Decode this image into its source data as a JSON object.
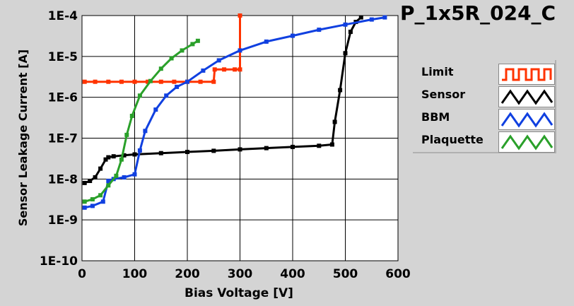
{
  "title": "P_1x5R_024_C",
  "chart_data": {
    "type": "line",
    "xlabel": "Bias Voltage [V]",
    "ylabel": "Sensor Leakage Current [A]",
    "xlim": [
      0,
      600
    ],
    "ylim": [
      1e-10,
      0.0001
    ],
    "y_scale": "log",
    "x_ticks": [
      "0",
      "100",
      "200",
      "300",
      "400",
      "500",
      "600"
    ],
    "y_ticks": [
      "1E-10",
      "1E-9",
      "1E-8",
      "1E-7",
      "1E-6",
      "1E-5",
      "1E-4"
    ],
    "grid": true,
    "legend_position": "right",
    "series": [
      {
        "name": "Limit",
        "color": "#ff3300",
        "points": [
          [
            5,
            2.4e-06
          ],
          [
            25,
            2.4e-06
          ],
          [
            50,
            2.4e-06
          ],
          [
            75,
            2.4e-06
          ],
          [
            100,
            2.4e-06
          ],
          [
            125,
            2.4e-06
          ],
          [
            150,
            2.4e-06
          ],
          [
            175,
            2.4e-06
          ],
          [
            200,
            2.4e-06
          ],
          [
            225,
            2.4e-06
          ],
          [
            250,
            2.4e-06
          ],
          [
            252,
            4.8e-06
          ],
          [
            270,
            4.8e-06
          ],
          [
            290,
            4.8e-06
          ],
          [
            300,
            4.8e-06
          ],
          [
            300,
            0.0001
          ]
        ]
      },
      {
        "name": "Sensor",
        "color": "#000000",
        "points": [
          [
            5,
            8e-09
          ],
          [
            15,
            9e-09
          ],
          [
            25,
            1.1e-08
          ],
          [
            35,
            1.8e-08
          ],
          [
            45,
            3e-08
          ],
          [
            50,
            3.4e-08
          ],
          [
            60,
            3.6e-08
          ],
          [
            80,
            3.8e-08
          ],
          [
            100,
            4e-08
          ],
          [
            150,
            4.3e-08
          ],
          [
            200,
            4.6e-08
          ],
          [
            250,
            4.9e-08
          ],
          [
            300,
            5.3e-08
          ],
          [
            350,
            5.7e-08
          ],
          [
            400,
            6.1e-08
          ],
          [
            450,
            6.5e-08
          ],
          [
            475,
            7e-08
          ],
          [
            480,
            2.5e-07
          ],
          [
            490,
            1.5e-06
          ],
          [
            500,
            1.2e-05
          ],
          [
            510,
            4e-05
          ],
          [
            520,
            7e-05
          ],
          [
            530,
            9e-05
          ]
        ]
      },
      {
        "name": "BBM",
        "color": "#1040e0",
        "points": [
          [
            5,
            2e-09
          ],
          [
            20,
            2.2e-09
          ],
          [
            40,
            2.8e-09
          ],
          [
            50,
            9e-09
          ],
          [
            60,
            1e-08
          ],
          [
            80,
            1.1e-08
          ],
          [
            100,
            1.3e-08
          ],
          [
            110,
            5e-08
          ],
          [
            120,
            1.5e-07
          ],
          [
            140,
            5e-07
          ],
          [
            160,
            1.1e-06
          ],
          [
            180,
            1.8e-06
          ],
          [
            200,
            2.4e-06
          ],
          [
            230,
            4.5e-06
          ],
          [
            260,
            8e-06
          ],
          [
            300,
            1.4e-05
          ],
          [
            350,
            2.3e-05
          ],
          [
            400,
            3.2e-05
          ],
          [
            450,
            4.5e-05
          ],
          [
            500,
            6e-05
          ],
          [
            550,
            8e-05
          ],
          [
            575,
            9e-05
          ]
        ]
      },
      {
        "name": "Plaquette",
        "color": "#2aa02a",
        "points": [
          [
            5,
            2.8e-09
          ],
          [
            20,
            3.2e-09
          ],
          [
            35,
            4e-09
          ],
          [
            50,
            7e-09
          ],
          [
            65,
            1.2e-08
          ],
          [
            75,
            3e-08
          ],
          [
            85,
            1.2e-07
          ],
          [
            95,
            3.5e-07
          ],
          [
            110,
            1.1e-06
          ],
          [
            130,
            2.5e-06
          ],
          [
            150,
            5e-06
          ],
          [
            170,
            9e-06
          ],
          [
            190,
            1.4e-05
          ],
          [
            210,
            2e-05
          ],
          [
            220,
            2.4e-05
          ]
        ]
      }
    ]
  }
}
